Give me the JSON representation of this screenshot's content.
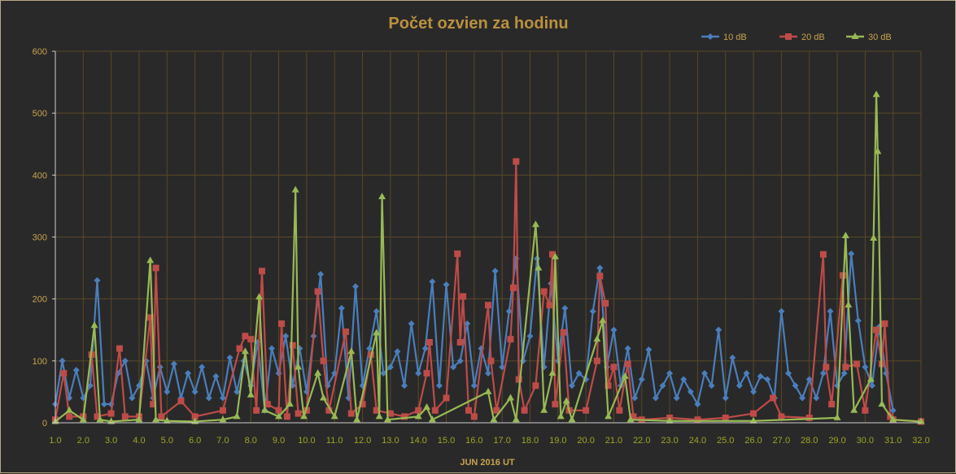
{
  "chart_data": {
    "type": "line",
    "title": "Počet ozvien za hodinu",
    "xlabel": "JUN  2016  UT",
    "ylabel": "",
    "xlim": [
      1,
      32
    ],
    "ylim": [
      0,
      600
    ],
    "xticks": [
      "1.0",
      "2.0",
      "3.0",
      "4.0",
      "5.0",
      "6.0",
      "7.0",
      "8.0",
      "9.0",
      "10.0",
      "11.0",
      "12.0",
      "13.0",
      "14.0",
      "15.0",
      "16.0",
      "17.0",
      "18.0",
      "19.0",
      "20.0",
      "21.0",
      "22.0",
      "23.0",
      "24.0",
      "25.0",
      "26.0",
      "27.0",
      "28.0",
      "29.0",
      "30.0",
      "31.0",
      "32.0"
    ],
    "yticks": [
      "0",
      "100",
      "200",
      "300",
      "400",
      "500",
      "600"
    ],
    "grid": true,
    "legend_position": "top-right",
    "series": [
      {
        "name": "10 dB",
        "color": "#4a7ebb",
        "marker": "diamond",
        "x_start": 1.0,
        "x_step": 0.25,
        "values": [
          30,
          100,
          40,
          85,
          40,
          60,
          230,
          30,
          30,
          80,
          100,
          40,
          60,
          100,
          40,
          90,
          50,
          95,
          40,
          80,
          50,
          90,
          40,
          75,
          40,
          105,
          50,
          100,
          60,
          130,
          20,
          120,
          80,
          140,
          60,
          120,
          50,
          140,
          240,
          60,
          80,
          185,
          40,
          220,
          60,
          120,
          180,
          80,
          90,
          115,
          60,
          160,
          80,
          120,
          228,
          60,
          223,
          90,
          100,
          160,
          60,
          120,
          80,
          245,
          90,
          180,
          265,
          100,
          140,
          265,
          90,
          225,
          100,
          185,
          60,
          80,
          70,
          180,
          250,
          90,
          150,
          60,
          120,
          40,
          70,
          118,
          40,
          60,
          80,
          40,
          70,
          50,
          30,
          80,
          60,
          150,
          40,
          105,
          60,
          80,
          50,
          75,
          70,
          40,
          180,
          80,
          60,
          40,
          70,
          40,
          80,
          180,
          60,
          80,
          273,
          165,
          90,
          60,
          155,
          80,
          20
        ]
      },
      {
        "name": "20 dB",
        "color": "#be4b48",
        "marker": "square",
        "points": [
          [
            1,
            5
          ],
          [
            1.3,
            80
          ],
          [
            1.5,
            10
          ],
          [
            2,
            10
          ],
          [
            2.3,
            110
          ],
          [
            2.5,
            10
          ],
          [
            3,
            15
          ],
          [
            3.3,
            120
          ],
          [
            3.5,
            10
          ],
          [
            4,
            10
          ],
          [
            4.4,
            170
          ],
          [
            4.5,
            30
          ],
          [
            4.6,
            250
          ],
          [
            4.8,
            10
          ],
          [
            5.5,
            35
          ],
          [
            6,
            10
          ],
          [
            7,
            20
          ],
          [
            7.6,
            120
          ],
          [
            7.8,
            140
          ],
          [
            8,
            135
          ],
          [
            8.2,
            20
          ],
          [
            8.4,
            245
          ],
          [
            8.6,
            30
          ],
          [
            9,
            20
          ],
          [
            9.1,
            160
          ],
          [
            9.3,
            10
          ],
          [
            9.5,
            125
          ],
          [
            9.7,
            15
          ],
          [
            10,
            20
          ],
          [
            10.4,
            212
          ],
          [
            10.6,
            100
          ],
          [
            10.8,
            20
          ],
          [
            11.4,
            147
          ],
          [
            11.6,
            15
          ],
          [
            12,
            30
          ],
          [
            12.3,
            110
          ],
          [
            12.5,
            20
          ],
          [
            13,
            15
          ],
          [
            13.5,
            10
          ],
          [
            14,
            20
          ],
          [
            14.3,
            80
          ],
          [
            14.4,
            130
          ],
          [
            14.6,
            20
          ],
          [
            15,
            40
          ],
          [
            15.4,
            273
          ],
          [
            15.5,
            130
          ],
          [
            15.6,
            204
          ],
          [
            15.8,
            20
          ],
          [
            16,
            10
          ],
          [
            16.5,
            190
          ],
          [
            16.6,
            100
          ],
          [
            16.8,
            20
          ],
          [
            17.3,
            135
          ],
          [
            17.4,
            218
          ],
          [
            17.5,
            422
          ],
          [
            17.6,
            70
          ],
          [
            17.8,
            20
          ],
          [
            18.2,
            60
          ],
          [
            18.5,
            212
          ],
          [
            18.7,
            190
          ],
          [
            18.8,
            272
          ],
          [
            18.9,
            30
          ],
          [
            19.2,
            146
          ],
          [
            19.4,
            20
          ],
          [
            20,
            20
          ],
          [
            20.4,
            100
          ],
          [
            20.5,
            237
          ],
          [
            20.7,
            193
          ],
          [
            20.8,
            60
          ],
          [
            21,
            90
          ],
          [
            21.2,
            20
          ],
          [
            21.5,
            95
          ],
          [
            21.7,
            10
          ],
          [
            22,
            5
          ],
          [
            23,
            8
          ],
          [
            24,
            5
          ],
          [
            25,
            8
          ],
          [
            26,
            15
          ],
          [
            26.7,
            40
          ],
          [
            27,
            10
          ],
          [
            28,
            8
          ],
          [
            28.5,
            272
          ],
          [
            28.6,
            90
          ],
          [
            28.8,
            30
          ],
          [
            29.2,
            238
          ],
          [
            29.3,
            90
          ],
          [
            29.7,
            95
          ],
          [
            30,
            20
          ],
          [
            30.4,
            150
          ],
          [
            30.6,
            95
          ],
          [
            30.7,
            160
          ],
          [
            30.9,
            10
          ],
          [
            31,
            5
          ],
          [
            32,
            2
          ]
        ]
      },
      {
        "name": "30 dB",
        "color": "#98b954",
        "marker": "triangle",
        "points": [
          [
            1,
            2
          ],
          [
            1.5,
            20
          ],
          [
            2,
            5
          ],
          [
            2.4,
            157
          ],
          [
            2.6,
            5
          ],
          [
            3,
            2
          ],
          [
            4,
            5
          ],
          [
            4.4,
            262
          ],
          [
            4.6,
            5
          ],
          [
            5,
            3
          ],
          [
            6,
            2
          ],
          [
            7,
            5
          ],
          [
            7.5,
            10
          ],
          [
            7.8,
            115
          ],
          [
            8,
            45
          ],
          [
            8.3,
            203
          ],
          [
            8.5,
            20
          ],
          [
            9,
            10
          ],
          [
            9.4,
            30
          ],
          [
            9.6,
            376
          ],
          [
            9.7,
            90
          ],
          [
            9.9,
            10
          ],
          [
            10.4,
            80
          ],
          [
            10.6,
            40
          ],
          [
            11,
            10
          ],
          [
            11.6,
            115
          ],
          [
            11.8,
            5
          ],
          [
            12.5,
            145
          ],
          [
            12.6,
            10
          ],
          [
            12.7,
            365
          ],
          [
            12.9,
            5
          ],
          [
            14,
            10
          ],
          [
            14.3,
            25
          ],
          [
            14.5,
            5
          ],
          [
            16.5,
            50
          ],
          [
            16.7,
            5
          ],
          [
            17.3,
            40
          ],
          [
            17.5,
            5
          ],
          [
            18.2,
            320
          ],
          [
            18.3,
            250
          ],
          [
            18.5,
            20
          ],
          [
            18.8,
            80
          ],
          [
            18.9,
            268
          ],
          [
            19.1,
            10
          ],
          [
            19.3,
            35
          ],
          [
            19.5,
            5
          ],
          [
            20.4,
            135
          ],
          [
            20.6,
            165
          ],
          [
            20.8,
            10
          ],
          [
            21.4,
            75
          ],
          [
            21.6,
            5
          ],
          [
            23,
            3
          ],
          [
            26,
            3
          ],
          [
            29,
            8
          ],
          [
            29.3,
            302
          ],
          [
            29.4,
            190
          ],
          [
            29.6,
            20
          ],
          [
            30.2,
            70
          ],
          [
            30.3,
            298
          ],
          [
            30.4,
            530
          ],
          [
            30.45,
            438
          ],
          [
            30.6,
            30
          ],
          [
            31,
            5
          ],
          [
            32,
            2
          ]
        ]
      }
    ]
  }
}
